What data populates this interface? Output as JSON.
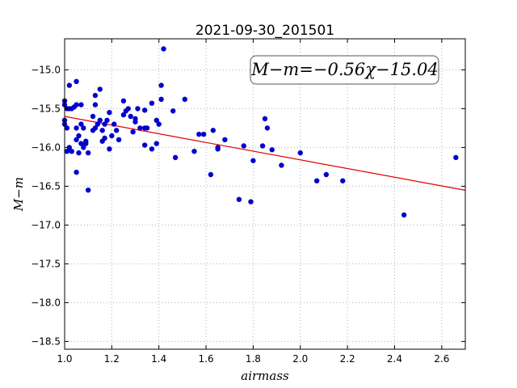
{
  "chart_data": {
    "type": "scatter",
    "title": "2021-09-30_201501",
    "xlabel": "airmass",
    "ylabel": "M−m",
    "xlim": [
      1.0,
      2.7
    ],
    "ylim": [
      -18.6,
      -14.6
    ],
    "y_inverted": true,
    "grid": true,
    "x_ticks": [
      "1.0",
      "1.2",
      "1.4",
      "1.6",
      "1.8",
      "2.0",
      "2.2",
      "2.4",
      "2.6"
    ],
    "x_tick_values": [
      1.0,
      1.2,
      1.4,
      1.6,
      1.8,
      2.0,
      2.2,
      2.4,
      2.6
    ],
    "y_ticks": [
      "−15.0",
      "−15.5",
      "−16.0",
      "−16.5",
      "−17.0",
      "−17.5",
      "−18.0",
      "−18.5"
    ],
    "y_tick_values": [
      -15.0,
      -15.5,
      -16.0,
      -16.5,
      -17.0,
      -17.5,
      -18.0,
      -18.5
    ],
    "annotation": "M−m=−0.56χ−15.04",
    "annotation_placement": "top-right",
    "fit": {
      "slope": -0.56,
      "intercept": -15.04,
      "color": "#e00000"
    },
    "point_color": "#0000cc",
    "points": [
      [
        1.0,
        -15.4
      ],
      [
        1.0,
        -15.45
      ],
      [
        1.0,
        -15.65
      ],
      [
        1.0,
        -15.7
      ],
      [
        1.01,
        -16.05
      ],
      [
        1.01,
        -15.75
      ],
      [
        1.01,
        -15.5
      ],
      [
        1.02,
        -16.0
      ],
      [
        1.02,
        -15.2
      ],
      [
        1.02,
        -15.5
      ],
      [
        1.03,
        -16.05
      ],
      [
        1.03,
        -15.5
      ],
      [
        1.04,
        -15.48
      ],
      [
        1.05,
        -15.15
      ],
      [
        1.05,
        -15.9
      ],
      [
        1.05,
        -15.75
      ],
      [
        1.05,
        -15.45
      ],
      [
        1.05,
        -16.32
      ],
      [
        1.06,
        -15.85
      ],
      [
        1.06,
        -16.07
      ],
      [
        1.07,
        -15.7
      ],
      [
        1.07,
        -15.95
      ],
      [
        1.07,
        -15.45
      ],
      [
        1.08,
        -16.0
      ],
      [
        1.08,
        -15.75
      ],
      [
        1.09,
        -15.95
      ],
      [
        1.09,
        -15.92
      ],
      [
        1.1,
        -16.55
      ],
      [
        1.1,
        -16.07
      ],
      [
        1.12,
        -15.6
      ],
      [
        1.12,
        -15.78
      ],
      [
        1.13,
        -15.45
      ],
      [
        1.13,
        -15.33
      ],
      [
        1.13,
        -15.75
      ],
      [
        1.14,
        -15.7
      ],
      [
        1.15,
        -15.25
      ],
      [
        1.15,
        -15.65
      ],
      [
        1.16,
        -15.78
      ],
      [
        1.16,
        -15.92
      ],
      [
        1.17,
        -15.7
      ],
      [
        1.17,
        -15.88
      ],
      [
        1.18,
        -15.65
      ],
      [
        1.19,
        -16.02
      ],
      [
        1.19,
        -15.55
      ],
      [
        1.2,
        -15.85
      ],
      [
        1.21,
        -15.7
      ],
      [
        1.22,
        -15.78
      ],
      [
        1.23,
        -15.9
      ],
      [
        1.25,
        -15.58
      ],
      [
        1.25,
        -15.4
      ],
      [
        1.26,
        -15.53
      ],
      [
        1.27,
        -15.5
      ],
      [
        1.28,
        -15.6
      ],
      [
        1.29,
        -15.8
      ],
      [
        1.3,
        -15.63
      ],
      [
        1.3,
        -15.67
      ],
      [
        1.31,
        -15.5
      ],
      [
        1.32,
        -15.75
      ],
      [
        1.34,
        -15.75
      ],
      [
        1.34,
        -15.97
      ],
      [
        1.34,
        -15.52
      ],
      [
        1.35,
        -15.75
      ],
      [
        1.37,
        -15.43
      ],
      [
        1.37,
        -16.02
      ],
      [
        1.39,
        -15.95
      ],
      [
        1.39,
        -15.65
      ],
      [
        1.4,
        -15.7
      ],
      [
        1.41,
        -15.38
      ],
      [
        1.41,
        -15.2
      ],
      [
        1.42,
        -14.73
      ],
      [
        1.46,
        -15.53
      ],
      [
        1.47,
        -16.13
      ],
      [
        1.51,
        -15.38
      ],
      [
        1.55,
        -16.05
      ],
      [
        1.57,
        -15.83
      ],
      [
        1.59,
        -15.83
      ],
      [
        1.62,
        -16.35
      ],
      [
        1.63,
        -15.78
      ],
      [
        1.65,
        -16.0
      ],
      [
        1.65,
        -16.02
      ],
      [
        1.68,
        -15.9
      ],
      [
        1.74,
        -16.67
      ],
      [
        1.76,
        -15.98
      ],
      [
        1.79,
        -16.7
      ],
      [
        1.8,
        -16.17
      ],
      [
        1.84,
        -15.98
      ],
      [
        1.85,
        -15.63
      ],
      [
        1.86,
        -15.75
      ],
      [
        1.88,
        -16.03
      ],
      [
        1.92,
        -16.23
      ],
      [
        2.0,
        -16.07
      ],
      [
        2.07,
        -16.43
      ],
      [
        2.11,
        -16.35
      ],
      [
        2.18,
        -16.43
      ],
      [
        2.44,
        -16.87
      ],
      [
        2.66,
        -16.13
      ]
    ]
  }
}
